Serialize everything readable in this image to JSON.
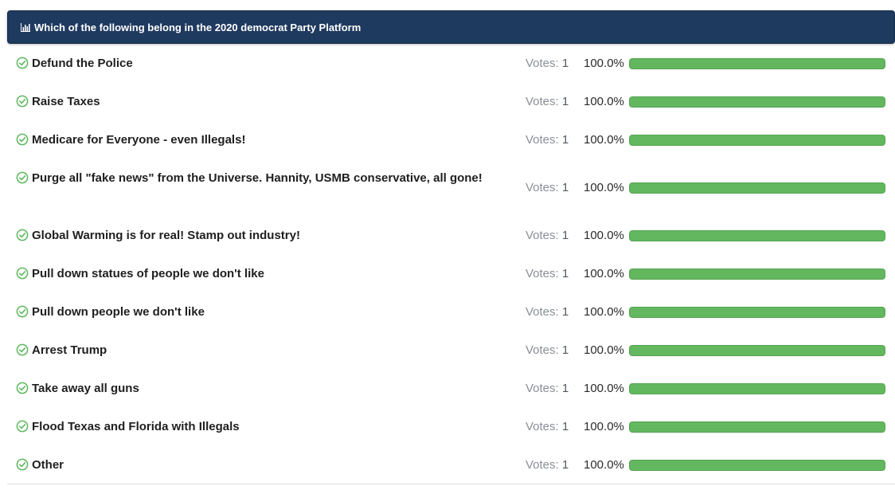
{
  "poll": {
    "title": "Which of the following belong in the 2020 democrat Party Platform",
    "accent_color": "#1f3a5f",
    "bar_color": "#63b75e",
    "votes_label": "Votes:",
    "icons": {
      "header": "bar-chart-icon",
      "option": "check-circle-icon"
    },
    "options": [
      {
        "label": "Defund the Police",
        "votes": "1",
        "percent_label": "100.0%",
        "percent": 100
      },
      {
        "label": "Raise Taxes",
        "votes": "1",
        "percent_label": "100.0%",
        "percent": 100
      },
      {
        "label": "Medicare for Everyone - even Illegals!",
        "votes": "1",
        "percent_label": "100.0%",
        "percent": 100
      },
      {
        "label": "Purge all \"fake news\" from the Universe. Hannity, USMB conservative, all gone!",
        "votes": "1",
        "percent_label": "100.0%",
        "percent": 100
      },
      {
        "label": "Global Warming is for real! Stamp out industry!",
        "votes": "1",
        "percent_label": "100.0%",
        "percent": 100
      },
      {
        "label": "Pull down statues of people we don't like",
        "votes": "1",
        "percent_label": "100.0%",
        "percent": 100
      },
      {
        "label": "Pull down people we don't like",
        "votes": "1",
        "percent_label": "100.0%",
        "percent": 100
      },
      {
        "label": "Arrest Trump",
        "votes": "1",
        "percent_label": "100.0%",
        "percent": 100
      },
      {
        "label": "Take away all guns",
        "votes": "1",
        "percent_label": "100.0%",
        "percent": 100
      },
      {
        "label": "Flood Texas and Florida with Illegals",
        "votes": "1",
        "percent_label": "100.0%",
        "percent": 100
      },
      {
        "label": "Other",
        "votes": "1",
        "percent_label": "100.0%",
        "percent": 100
      }
    ]
  }
}
